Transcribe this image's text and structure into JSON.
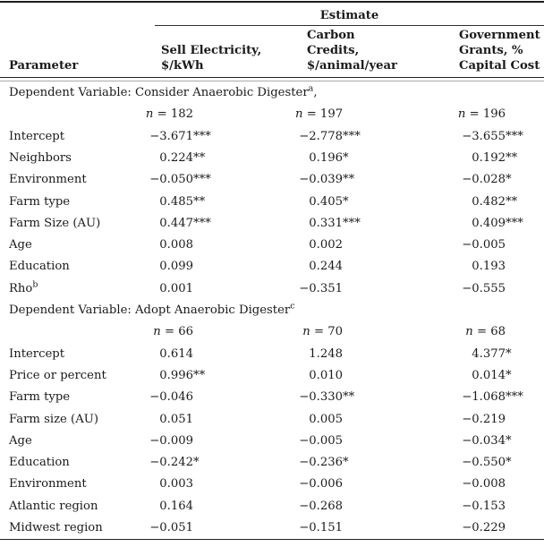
{
  "colors": {
    "text": "#1a1a1a",
    "rule_dark": "#222222",
    "rule_light": "#aaaaaa",
    "background": "#ffffff"
  },
  "table": {
    "spanner": "Estimate",
    "columns": {
      "parameter": "Parameter",
      "sell_electricity": "Sell Electricity,\n$/kWh",
      "carbon_credits": "Carbon\nCredits,\n$/animal/year",
      "government_grants": "Government\nGrants, %\nCapital Cost"
    },
    "sections": [
      {
        "title": {
          "pre": "Dependent Variable: Consider Anaerobic Digester",
          "sup": "a",
          "post": ","
        },
        "n": [
          "n = 182",
          "n = 197",
          "n = 196"
        ],
        "rows": [
          {
            "label": {
              "pre": "Intercept",
              "sup": ""
            },
            "cells": [
              {
                "v": "−3.671",
                "s": "***"
              },
              {
                "v": "−2.778",
                "s": "***"
              },
              {
                "v": "−3.655",
                "s": "***"
              }
            ]
          },
          {
            "label": {
              "pre": "Neighbors",
              "sup": ""
            },
            "cells": [
              {
                "v": "0.224",
                "s": "**"
              },
              {
                "v": "0.196",
                "s": "*"
              },
              {
                "v": "0.192",
                "s": "**"
              }
            ]
          },
          {
            "label": {
              "pre": "Environment",
              "sup": ""
            },
            "cells": [
              {
                "v": "−0.050",
                "s": "***"
              },
              {
                "v": "−0.039",
                "s": "**"
              },
              {
                "v": "−0.028",
                "s": "*"
              }
            ]
          },
          {
            "label": {
              "pre": "Farm type",
              "sup": ""
            },
            "cells": [
              {
                "v": "0.485",
                "s": "**"
              },
              {
                "v": "0.405",
                "s": "*"
              },
              {
                "v": "0.482",
                "s": "**"
              }
            ]
          },
          {
            "label": {
              "pre": "Farm Size (AU)",
              "sup": ""
            },
            "cells": [
              {
                "v": "0.447",
                "s": "***"
              },
              {
                "v": "0.331",
                "s": "***"
              },
              {
                "v": "0.409",
                "s": "***"
              }
            ]
          },
          {
            "label": {
              "pre": "Age",
              "sup": ""
            },
            "cells": [
              {
                "v": "0.008",
                "s": ""
              },
              {
                "v": "0.002",
                "s": ""
              },
              {
                "v": "−0.005",
                "s": ""
              }
            ]
          },
          {
            "label": {
              "pre": "Education",
              "sup": ""
            },
            "cells": [
              {
                "v": "0.099",
                "s": ""
              },
              {
                "v": "0.244",
                "s": ""
              },
              {
                "v": "0.193",
                "s": ""
              }
            ]
          },
          {
            "label": {
              "pre": "Rho",
              "sup": "b"
            },
            "cells": [
              {
                "v": "0.001",
                "s": ""
              },
              {
                "v": "−0.351",
                "s": ""
              },
              {
                "v": "−0.555",
                "s": ""
              }
            ]
          }
        ]
      },
      {
        "title": {
          "pre": "Dependent Variable: Adopt Anaerobic Digester",
          "sup": "c",
          "post": ""
        },
        "n": [
          "n = 66",
          "n = 70",
          "n = 68"
        ],
        "rows": [
          {
            "label": {
              "pre": "Intercept",
              "sup": ""
            },
            "cells": [
              {
                "v": "0.614",
                "s": ""
              },
              {
                "v": "1.248",
                "s": ""
              },
              {
                "v": "4.377",
                "s": "*"
              }
            ]
          },
          {
            "label": {
              "pre": "Price or percent",
              "sup": ""
            },
            "cells": [
              {
                "v": "0.996",
                "s": "**"
              },
              {
                "v": "0.010",
                "s": ""
              },
              {
                "v": "0.014",
                "s": "*"
              }
            ]
          },
          {
            "label": {
              "pre": "Farm type",
              "sup": ""
            },
            "cells": [
              {
                "v": "−0.046",
                "s": ""
              },
              {
                "v": "−0.330",
                "s": "**"
              },
              {
                "v": "−1.068",
                "s": "***"
              }
            ]
          },
          {
            "label": {
              "pre": "Farm size (AU)",
              "sup": ""
            },
            "cells": [
              {
                "v": "0.051",
                "s": ""
              },
              {
                "v": "0.005",
                "s": ""
              },
              {
                "v": "−0.219",
                "s": ""
              }
            ]
          },
          {
            "label": {
              "pre": "Age",
              "sup": ""
            },
            "cells": [
              {
                "v": "−0.009",
                "s": ""
              },
              {
                "v": "−0.005",
                "s": ""
              },
              {
                "v": "−0.034",
                "s": "*"
              }
            ]
          },
          {
            "label": {
              "pre": "Education",
              "sup": ""
            },
            "cells": [
              {
                "v": "−0.242",
                "s": "*"
              },
              {
                "v": "−0.236",
                "s": "*"
              },
              {
                "v": "−0.550",
                "s": "*"
              }
            ]
          },
          {
            "label": {
              "pre": "Environment",
              "sup": ""
            },
            "cells": [
              {
                "v": "0.003",
                "s": ""
              },
              {
                "v": "−0.006",
                "s": ""
              },
              {
                "v": "−0.008",
                "s": ""
              }
            ]
          },
          {
            "label": {
              "pre": "Atlantic region",
              "sup": ""
            },
            "cells": [
              {
                "v": "0.164",
                "s": ""
              },
              {
                "v": "−0.268",
                "s": ""
              },
              {
                "v": "−0.153",
                "s": ""
              }
            ]
          },
          {
            "label": {
              "pre": "Midwest region",
              "sup": ""
            },
            "cells": [
              {
                "v": "−0.051",
                "s": ""
              },
              {
                "v": "−0.151",
                "s": ""
              },
              {
                "v": "−0.229",
                "s": ""
              }
            ]
          }
        ]
      }
    ]
  }
}
